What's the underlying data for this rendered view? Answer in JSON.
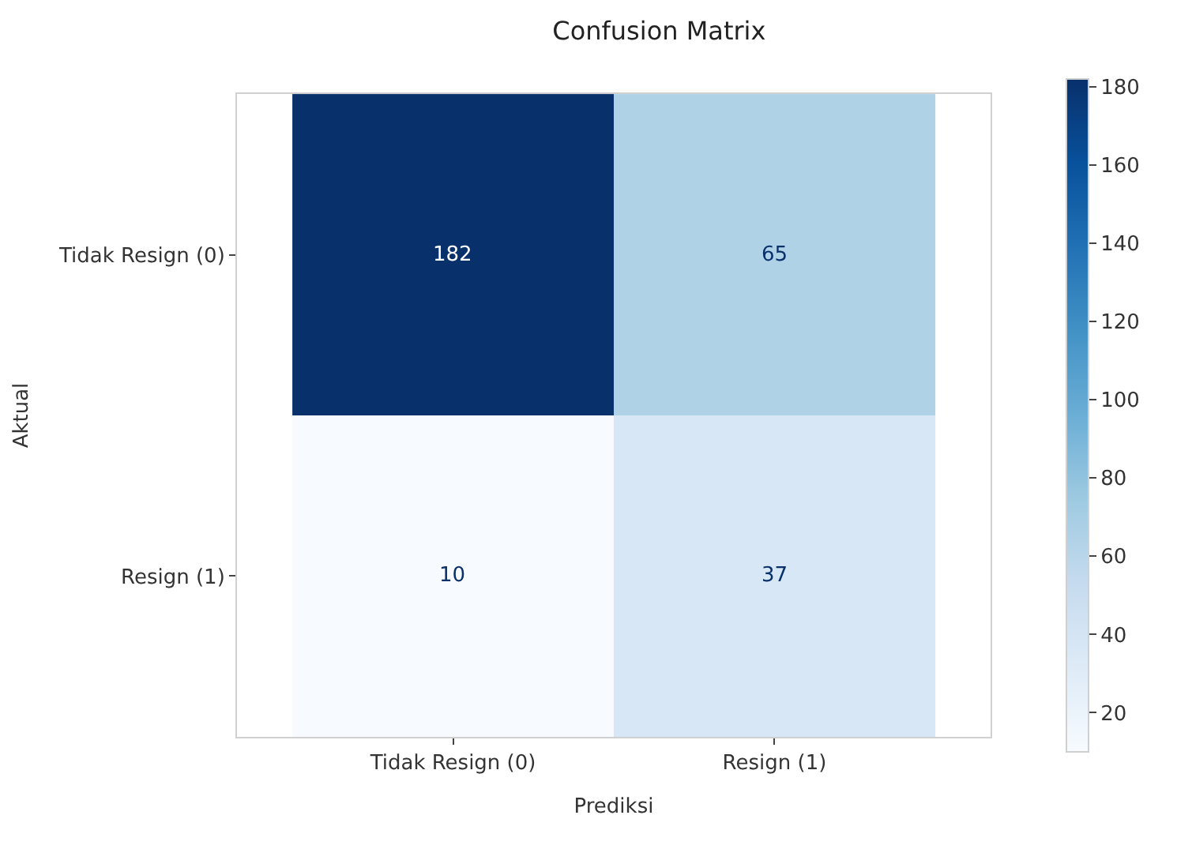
{
  "chart_data": {
    "type": "heatmap",
    "title": "Confusion Matrix",
    "xlabel": "Prediksi",
    "ylabel": "Aktual",
    "categories": [
      "Tidak Resign (0)",
      "Resign (1)"
    ],
    "y_categories": [
      "Tidak Resign (0)",
      "Resign (1)"
    ],
    "cells": [
      [
        182,
        65
      ],
      [
        10,
        37
      ]
    ],
    "clim": [
      10,
      182
    ],
    "cticks": [
      20,
      40,
      60,
      80,
      100,
      120,
      140,
      160,
      180
    ],
    "data_labels": true
  }
}
